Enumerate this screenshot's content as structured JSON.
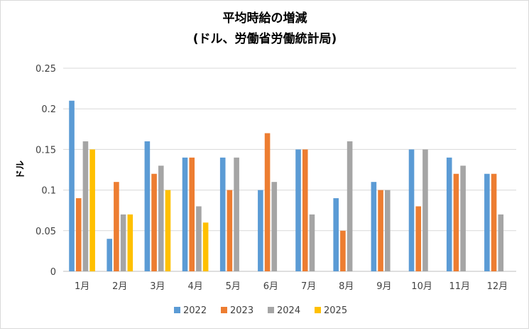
{
  "chart_data": {
    "type": "bar",
    "title": "平均時給の増減",
    "subtitle": "(ドル、労働省労働統計局)",
    "xlabel": "",
    "ylabel": "ドル",
    "ylim": [
      0,
      0.25
    ],
    "yticks": [
      "0",
      "0.05",
      "0.1",
      "0.15",
      "0.2",
      "0.25"
    ],
    "categories": [
      "1月",
      "2月",
      "3月",
      "4月",
      "5月",
      "6月",
      "7月",
      "8月",
      "9月",
      "10月",
      "11月",
      "12月"
    ],
    "series": [
      {
        "name": "2022",
        "color": "#5b9bd5",
        "values": [
          0.21,
          0.04,
          0.16,
          0.14,
          0.14,
          0.1,
          0.15,
          0.09,
          0.11,
          0.15,
          0.14,
          0.12
        ]
      },
      {
        "name": "2023",
        "color": "#ed7d31",
        "values": [
          0.09,
          0.11,
          0.12,
          0.14,
          0.1,
          0.17,
          0.15,
          0.05,
          0.1,
          0.08,
          0.12,
          0.12
        ]
      },
      {
        "name": "2024",
        "color": "#a5a5a5",
        "values": [
          0.16,
          0.07,
          0.13,
          0.08,
          0.14,
          0.11,
          0.07,
          0.16,
          0.1,
          0.15,
          0.13,
          0.07
        ]
      },
      {
        "name": "2025",
        "color": "#ffc000",
        "values": [
          0.15,
          0.07,
          0.1,
          0.06,
          null,
          null,
          null,
          null,
          null,
          null,
          null,
          null
        ]
      }
    ],
    "grid": true,
    "legend_position": "bottom"
  }
}
